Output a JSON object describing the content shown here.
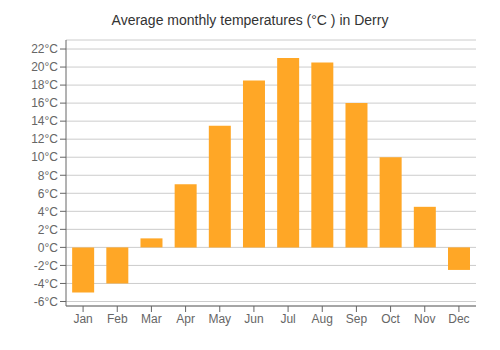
{
  "chart_data": {
    "type": "bar",
    "title": "Average monthly temperatures (°C ) in Derry",
    "categories": [
      "Jan",
      "Feb",
      "Mar",
      "Apr",
      "May",
      "Jun",
      "Jul",
      "Aug",
      "Sep",
      "Oct",
      "Nov",
      "Dec"
    ],
    "values": [
      -5.0,
      -4.0,
      1.0,
      7.0,
      13.5,
      18.5,
      21.0,
      20.5,
      16.0,
      10.0,
      4.5,
      -2.5
    ],
    "color": "#FFA726",
    "ylim": [
      -6.5,
      23
    ],
    "yticks": [
      {
        "value": -6,
        "label": "-6°C"
      },
      {
        "value": -4,
        "label": "-4°C"
      },
      {
        "value": -2,
        "label": "-2°C"
      },
      {
        "value": 0,
        "label": "0°C"
      },
      {
        "value": 2,
        "label": "2°C"
      },
      {
        "value": 4,
        "label": "4°C"
      },
      {
        "value": 6,
        "label": "6°C"
      },
      {
        "value": 8,
        "label": "8°C"
      },
      {
        "value": 10,
        "label": "10°C"
      },
      {
        "value": 12,
        "label": "12°C"
      },
      {
        "value": 14,
        "label": "14°C"
      },
      {
        "value": 16,
        "label": "16°C"
      },
      {
        "value": 18,
        "label": "18°C"
      },
      {
        "value": 20,
        "label": "20°C"
      },
      {
        "value": 22,
        "label": "22°C"
      }
    ],
    "grid": true
  }
}
